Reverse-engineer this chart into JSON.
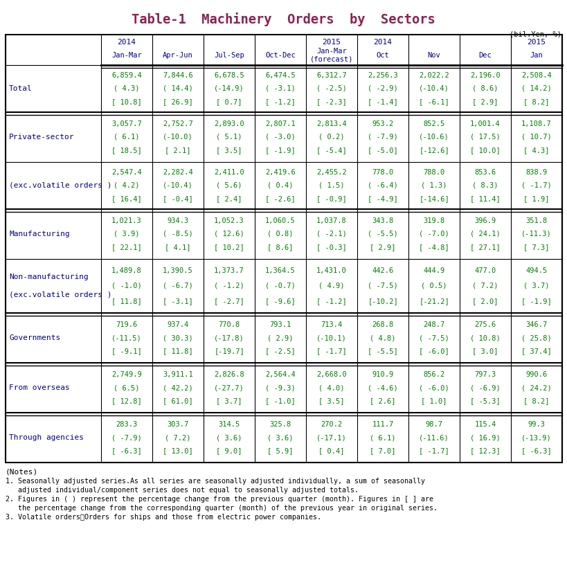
{
  "title": "Table-1  Machinery  Orders  by  Sectors",
  "title_color": "#8B2252",
  "unit_label": "(bil.Yen, %)",
  "header_color": "#00008B",
  "data_color": "#008000",
  "label_color": "#00008B",
  "rows": [
    {
      "label": [
        "Total"
      ],
      "label_indent": 0,
      "data": [
        [
          "6,859.4",
          "( 4.3)",
          "[ 10.8]"
        ],
        [
          "7,844.6",
          "( 14.4)",
          "[ 26.9]"
        ],
        [
          "6,678.5",
          "(-14.9)",
          "[ 0.7]"
        ],
        [
          "6,474.5",
          "( -3.1)",
          "[ -1.2]"
        ],
        [
          "6,312.7",
          "( -2.5)",
          "[ -2.3]"
        ],
        [
          "2,256.3",
          "( -2.9)",
          "[ -1.4]"
        ],
        [
          "2,022.2",
          "(-10.4)",
          "[ -6.1]"
        ],
        [
          "2,196.0",
          "( 8.6)",
          "[ 2.9]"
        ],
        [
          "2,508.4",
          "( 14.2)",
          "[ 8.2]"
        ]
      ],
      "section_break_before": true
    },
    {
      "label": [
        "Private-sector"
      ],
      "label_indent": 1,
      "data": [
        [
          "3,057.7",
          "( 6.1)",
          "[ 18.5]"
        ],
        [
          "2,752.7",
          "(-10.0)",
          "[ 2.1]"
        ],
        [
          "2,893.0",
          "( 5.1)",
          "[ 3.5]"
        ],
        [
          "2,807.1",
          "( -3.0)",
          "[ -1.9]"
        ],
        [
          "2,813.4",
          "( 0.2)",
          "[ -5.4]"
        ],
        [
          "953.2",
          "( -7.9)",
          "[ -5.0]"
        ],
        [
          "852.5",
          "(-10.6)",
          "[-12.6]"
        ],
        [
          "1,001.4",
          "( 17.5)",
          "[ 10.0]"
        ],
        [
          "1,108.7",
          "( 10.7)",
          "[ 4.3]"
        ]
      ],
      "section_break_before": true
    },
    {
      "label": [
        "(exc.volatile orders )"
      ],
      "label_indent": 1,
      "data": [
        [
          "2,547.4",
          "( 4.2)",
          "[ 16.4]"
        ],
        [
          "2,282.4",
          "(-10.4)",
          "[ -0.4]"
        ],
        [
          "2,411.0",
          "( 5.6)",
          "[ 2.4]"
        ],
        [
          "2,419.6",
          "( 0.4)",
          "[ -2.6]"
        ],
        [
          "2,455.2",
          "( 1.5)",
          "[ -0.9]"
        ],
        [
          "778.0",
          "( -6.4)",
          "[ -4.9]"
        ],
        [
          "788.0",
          "( 1.3)",
          "[-14.6]"
        ],
        [
          "853.6",
          "( 8.3)",
          "[ 11.4]"
        ],
        [
          "838.9",
          "( -1.7)",
          "[ 1.9]"
        ]
      ],
      "section_break_before": false
    },
    {
      "label": [
        "Manufacturing"
      ],
      "label_indent": 2,
      "data": [
        [
          "1,021.3",
          "( 3.9)",
          "[ 22.1]"
        ],
        [
          "934.3",
          "( -8.5)",
          "[ 4.1]"
        ],
        [
          "1,052.3",
          "( 12.6)",
          "[ 10.2]"
        ],
        [
          "1,060.5",
          "( 0.8)",
          "[ 8.6]"
        ],
        [
          "1,037.8",
          "( -2.1)",
          "[ -0.3]"
        ],
        [
          "343.8",
          "( -5.5)",
          "[ 2.9]"
        ],
        [
          "319.8",
          "( -7.0)",
          "[ -4.8]"
        ],
        [
          "396.9",
          "( 24.1)",
          "[ 27.1]"
        ],
        [
          "351.8",
          "(-11.3)",
          "[ 7.3]"
        ]
      ],
      "section_break_before": true
    },
    {
      "label": [
        "Non-manufacturing",
        "(exc.volatile orders )"
      ],
      "label_indent": 2,
      "data": [
        [
          "1,489.8",
          "( -1.0)",
          "[ 11.8]"
        ],
        [
          "1,390.5",
          "( -6.7)",
          "[ -3.1]"
        ],
        [
          "1,373.7",
          "( -1.2)",
          "[ -2.7]"
        ],
        [
          "1,364.5",
          "( -0.7)",
          "[ -9.6]"
        ],
        [
          "1,431.0",
          "( 4.9)",
          "[ -1.2]"
        ],
        [
          "442.6",
          "( -7.5)",
          "[-10.2]"
        ],
        [
          "444.9",
          "( 0.5)",
          "[-21.2]"
        ],
        [
          "477.0",
          "( 7.2)",
          "[ 2.0]"
        ],
        [
          "494.5",
          "( 3.7)",
          "[ -1.9]"
        ]
      ],
      "section_break_before": false
    },
    {
      "label": [
        "Governments"
      ],
      "label_indent": 1,
      "data": [
        [
          "719.6",
          "(-11.5)",
          "[ -9.1]"
        ],
        [
          "937.4",
          "( 30.3)",
          "[ 11.8]"
        ],
        [
          "770.8",
          "(-17.8)",
          "[-19.7]"
        ],
        [
          "793.1",
          "( 2.9)",
          "[ -2.5]"
        ],
        [
          "713.4",
          "(-10.1)",
          "[ -1.7]"
        ],
        [
          "268.8",
          "( 4.8)",
          "[ -5.5]"
        ],
        [
          "248.7",
          "( -7.5)",
          "[ -6.0]"
        ],
        [
          "275.6",
          "( 10.8)",
          "[ 3.0]"
        ],
        [
          "346.7",
          "( 25.8)",
          "[ 37.4]"
        ]
      ],
      "section_break_before": true
    },
    {
      "label": [
        "From overseas"
      ],
      "label_indent": 1,
      "data": [
        [
          "2,749.9",
          "( 6.5)",
          "[ 12.8]"
        ],
        [
          "3,911.1",
          "( 42.2)",
          "[ 61.0]"
        ],
        [
          "2,826.8",
          "(-27.7)",
          "[ 3.7]"
        ],
        [
          "2,564.4",
          "( -9.3)",
          "[ -1.0]"
        ],
        [
          "2,668.0",
          "( 4.0)",
          "[ 3.5]"
        ],
        [
          "910.9",
          "( -4.6)",
          "[ 2.6]"
        ],
        [
          "856.2",
          "( -6.0)",
          "[ 1.0]"
        ],
        [
          "797.3",
          "( -6.9)",
          "[ -5.3]"
        ],
        [
          "990.6",
          "( 24.2)",
          "[ 8.2]"
        ]
      ],
      "section_break_before": true
    },
    {
      "label": [
        "Through agencies"
      ],
      "label_indent": 1,
      "data": [
        [
          "283.3",
          "( -7.9)",
          "[ -6.3]"
        ],
        [
          "303.7",
          "( 7.2)",
          "[ 13.0]"
        ],
        [
          "314.5",
          "( 3.6)",
          "[ 9.0]"
        ],
        [
          "325.8",
          "( 3.6)",
          "[ 5.9]"
        ],
        [
          "270.2",
          "(-17.1)",
          "[ 0.4]"
        ],
        [
          "111.7",
          "( 6.1)",
          "[ 7.0]"
        ],
        [
          "98.7",
          "(-11.6)",
          "[ -1.7]"
        ],
        [
          "115.4",
          "( 16.9)",
          "[ 12.3]"
        ],
        [
          "99.3",
          "(-13.9)",
          "[ -6.3]"
        ]
      ],
      "section_break_before": true
    }
  ],
  "notes": [
    "(Notes)",
    "1. Seasonally adjusted series.As all series are seasonally adjusted individually, a sum of seasonally",
    "   adjusted individual/component series does not equal to seasonally adjusted totals.",
    "2. Figures in ( ) represent the percentage change from the previous quarter (month). Figures in [ ] are",
    "   the percentage change from the corresponding quarter (month) of the previous year in original series.",
    "3. Volatile orders：Orders for ships and those from electric power companies."
  ]
}
